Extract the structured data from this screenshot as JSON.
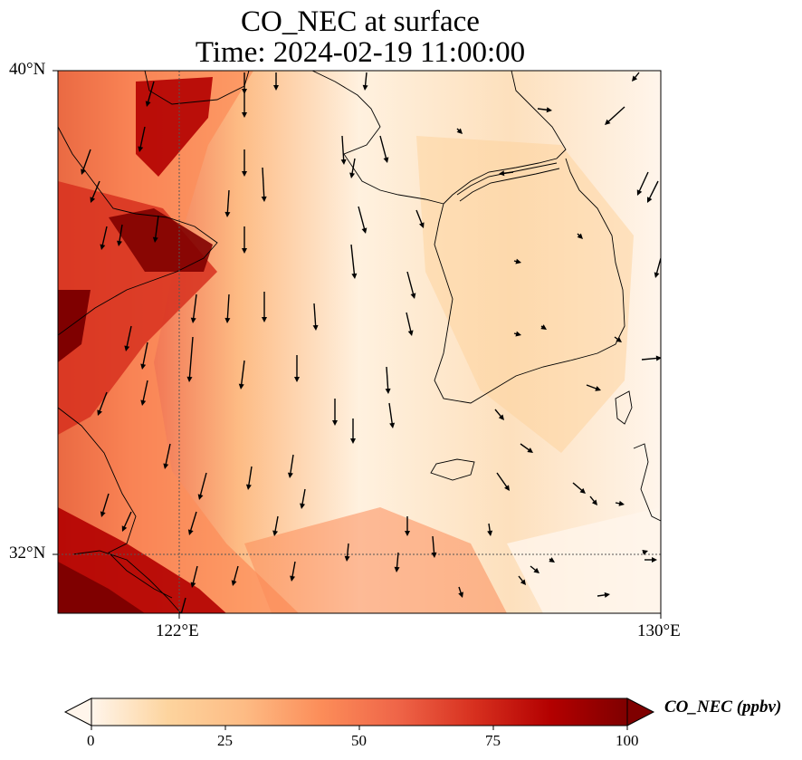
{
  "figure": {
    "title_line1": "CO_NEC at surface",
    "title_line2": "Time: 2024-02-19 11:00:00"
  },
  "map": {
    "lat_labels": [
      "40°N",
      "32°N"
    ],
    "lon_labels": [
      "122°E",
      "130°E"
    ]
  },
  "colorbar": {
    "label": "CO_NEC (ppbv)",
    "ticks": [
      "0",
      "25",
      "50",
      "75",
      "100"
    ],
    "range": [
      0,
      100
    ],
    "extend": "both",
    "colormap_stops": [
      "#fff5eb",
      "#fdd49e",
      "#fdbb84",
      "#fc8d59",
      "#ef6548",
      "#d7301f",
      "#b30000",
      "#7f0000"
    ]
  }
}
